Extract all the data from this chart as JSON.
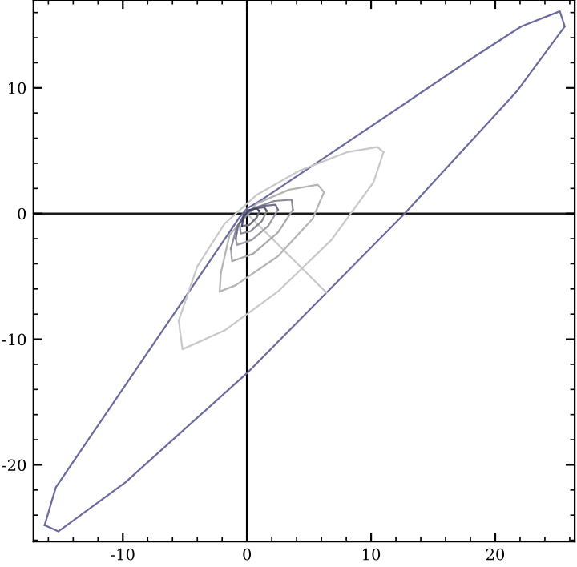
{
  "chart_data": {
    "type": "line",
    "xlim": [
      -17.2,
      26.4
    ],
    "ylim": [
      -26.1,
      17.0
    ],
    "xticks": [
      -10,
      0,
      10,
      20
    ],
    "yticks": [
      -20,
      -10,
      0,
      10
    ],
    "grid": false,
    "marker": "none",
    "line_style": "solid",
    "ref_lines": [
      {
        "axis": "x",
        "value": 0,
        "color": "#000000"
      },
      {
        "axis": "y",
        "value": 0,
        "color": "#1a1a1a"
      }
    ],
    "series": [
      {
        "color": "#6a6a9e",
        "x": [
          -16.3,
          -15.2,
          -9.8,
          0,
          12.7,
          21.8,
          25.6
        ],
        "values": [
          -24.8,
          -25.3,
          -21.4,
          -12.7,
          0,
          9.8,
          14.9
        ]
      },
      {
        "color": "#6a6a9e",
        "x": [
          -16.3,
          -15.4,
          -0.6,
          0,
          1.2,
          18.5,
          22.1,
          25.2,
          25.6
        ],
        "values": [
          -24.8,
          -21.8,
          -0.3,
          0.4,
          1.1,
          12.6,
          14.9,
          16.1,
          14.9
        ]
      },
      {
        "color": "#c8c8c8",
        "x": [
          -5.5,
          -5.2,
          -1.8,
          2.5,
          6.8,
          10.2,
          11.0
        ],
        "values": [
          -8.5,
          -10.8,
          -9.3,
          -6.2,
          -2.1,
          2.5,
          4.9
        ]
      },
      {
        "color": "#c8c8c8",
        "x": [
          -5.5,
          -4.0,
          -1.8,
          0.8,
          4.2,
          8.1,
          10.5,
          11.0
        ],
        "values": [
          -8.5,
          -4.2,
          -0.8,
          1.5,
          3.4,
          4.9,
          5.3,
          4.9
        ]
      },
      {
        "color": "#c8c8c8",
        "x": [
          0,
          6.4
        ],
        "values": [
          0,
          -6.3
        ]
      },
      {
        "color": "#b4b4b4",
        "x": [
          -2.2,
          -0.9,
          2.5,
          5.3,
          6.2
        ],
        "values": [
          -6.2,
          -5.7,
          -3.4,
          -0.4,
          1.7
        ]
      },
      {
        "color": "#b4b4b4",
        "x": [
          -2.2,
          -2.1,
          -1.4,
          0.8,
          3.4,
          5.7,
          6.2
        ],
        "values": [
          -6.2,
          -4.7,
          -1.7,
          0.8,
          1.9,
          2.3,
          1.7
        ]
      },
      {
        "color": "#a8a8ac",
        "x": [
          -1.3,
          -1.2,
          0.5,
          2.5,
          3.7
        ],
        "values": [
          -2.8,
          -3.8,
          -3.2,
          -1.5,
          0.3
        ]
      },
      {
        "color": "#8a8a9c",
        "x": [
          -1.3,
          -0.8,
          0.5,
          2.2,
          3.6,
          3.7
        ],
        "values": [
          -2.8,
          -1.0,
          0.4,
          1.0,
          1.1,
          0.3
        ]
      },
      {
        "color": "#9c9ca6",
        "x": [
          -0.9,
          -0.8,
          0.4,
          1.7,
          2.5
        ],
        "values": [
          -2.0,
          -2.5,
          -2.1,
          -1.0,
          0.3
        ]
      },
      {
        "color": "#70708a",
        "x": [
          -0.9,
          -0.7,
          0,
          1.2,
          2.3,
          2.5
        ],
        "values": [
          -2.0,
          -0.9,
          0.2,
          0.6,
          0.7,
          0.3
        ]
      },
      {
        "color": "#8a8a96",
        "x": [
          -0.6,
          -0.5,
          0.3,
          1.2,
          1.6
        ],
        "values": [
          -0.8,
          -1.6,
          -1.4,
          -0.6,
          0.2
        ]
      },
      {
        "color": "#5e5e7c",
        "x": [
          -0.6,
          -0.2,
          0.6,
          1.4,
          1.6
        ],
        "values": [
          -0.8,
          0,
          0.4,
          0.5,
          0.2
        ]
      },
      {
        "color": "#6e6e80",
        "x": [
          -0.4,
          0.2,
          0.8,
          1.0
        ],
        "values": [
          -1.0,
          -0.9,
          -0.3,
          0.2
        ]
      },
      {
        "color": "#464668",
        "x": [
          -0.4,
          -0.3,
          0.2,
          0.8,
          1.0
        ],
        "values": [
          -1.0,
          -0.3,
          0.3,
          0.4,
          0.2
        ]
      }
    ]
  }
}
